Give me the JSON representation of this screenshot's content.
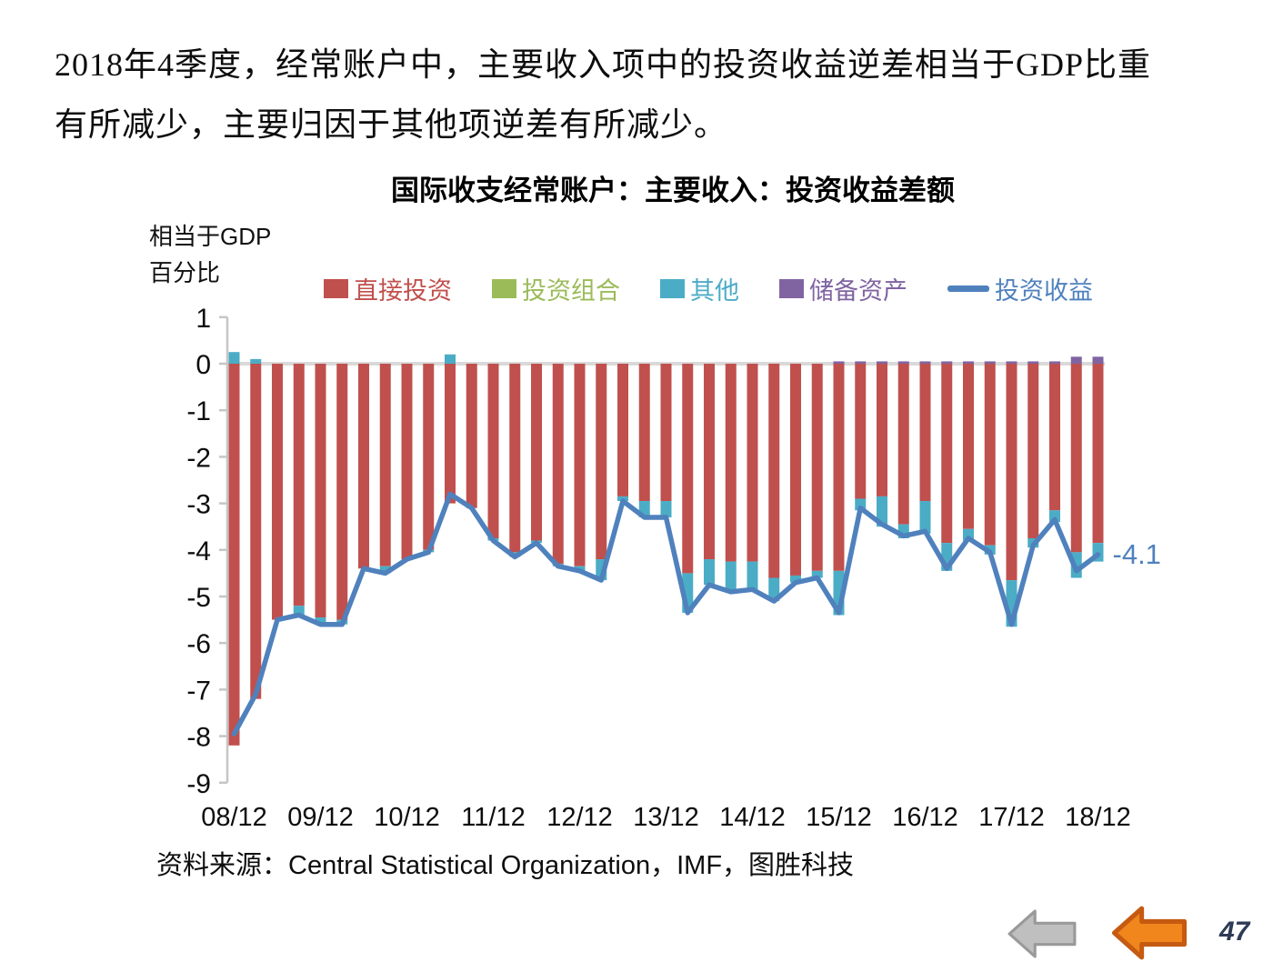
{
  "page": {
    "heading_line1": "2018年4季度，经常账户中，主要收入项中的投资收益逆差相当于GDP比重",
    "heading_line2": "有所减少，主要归因于其他项逆差有所减少。",
    "source_text": "资料来源：Central Statistical Organization，IMF，图胜科技",
    "page_number": "47"
  },
  "chart_data": {
    "type": "bar",
    "subtype": "stacked-bars-with-line-overlay",
    "title": "国际收支经常账户：主要收入：投资收益差额",
    "ylabel_line1": "相当于GDP",
    "ylabel_line2": "百分比",
    "ylim": [
      -9,
      1
    ],
    "y_ticks": [
      1,
      0,
      -1,
      -2,
      -3,
      -4,
      -5,
      -6,
      -7,
      -8,
      -9
    ],
    "frequency": "quarterly",
    "n_points": 41,
    "x_tick_labels": [
      "08/12",
      "09/12",
      "10/12",
      "11/12",
      "12/12",
      "13/12",
      "14/12",
      "15/12",
      "16/12",
      "17/12",
      "18/12"
    ],
    "x_tick_interval": 4,
    "grid": "zero-line-only",
    "legend_position": "top",
    "axis_color": "#C6C6C6",
    "zero_line_color": "#D9D9D9",
    "annotation": {
      "text": "-4.1",
      "series": "投资收益",
      "point_index": 40,
      "color": "#4F81BD"
    },
    "series": [
      {
        "name": "直接投资",
        "type": "bar",
        "color": "#C0504D",
        "values": [
          -8.2,
          -7.2,
          -5.5,
          -5.2,
          -5.45,
          -5.5,
          -4.4,
          -4.35,
          -4.2,
          -4.0,
          -3.0,
          -3.1,
          -3.75,
          -4.05,
          -3.8,
          -4.3,
          -4.35,
          -4.2,
          -2.85,
          -2.95,
          -2.95,
          -4.5,
          -4.2,
          -4.25,
          -4.25,
          -4.6,
          -4.55,
          -4.45,
          -4.45,
          -2.9,
          -2.85,
          -3.45,
          -2.95,
          -3.85,
          -3.55,
          -3.9,
          -4.65,
          -3.75,
          -3.15,
          -4.05,
          -3.85
        ]
      },
      {
        "name": "投资组合",
        "type": "bar",
        "color": "#9BBB59",
        "values": [
          0,
          0,
          0,
          0,
          0,
          0,
          0,
          0,
          0,
          0,
          0,
          0,
          0,
          0,
          0,
          0,
          0,
          0,
          0,
          0,
          0,
          0,
          0,
          0,
          0,
          0,
          0,
          0,
          0,
          0,
          0,
          0,
          0,
          0,
          0,
          0,
          0,
          0,
          0,
          0,
          0
        ]
      },
      {
        "name": "其他",
        "type": "bar",
        "color": "#4BACC6",
        "values": [
          0.25,
          0.1,
          0,
          -0.2,
          -0.15,
          -0.1,
          0,
          -0.15,
          0,
          -0.05,
          0.2,
          0,
          -0.05,
          -0.1,
          -0.05,
          -0.05,
          -0.1,
          -0.45,
          -0.1,
          -0.35,
          -0.35,
          -0.85,
          -0.55,
          -0.65,
          -0.6,
          -0.5,
          -0.15,
          -0.15,
          -0.95,
          -0.25,
          -0.65,
          -0.3,
          -0.7,
          -0.6,
          -0.25,
          -0.2,
          -1.0,
          -0.2,
          -0.25,
          -0.55,
          -0.4
        ]
      },
      {
        "name": "储备资产",
        "type": "bar",
        "color": "#8064A2",
        "values": [
          0,
          0,
          0,
          0,
          0,
          0,
          0,
          0,
          0,
          0,
          0,
          0,
          0,
          0,
          0,
          0,
          0,
          0,
          0,
          0,
          0,
          0,
          0,
          0,
          0,
          0,
          0,
          0,
          0.05,
          0.05,
          0.05,
          0.05,
          0.05,
          0.05,
          0.05,
          0.05,
          0.05,
          0.05,
          0.05,
          0.15,
          0.15
        ]
      },
      {
        "name": "投资收益",
        "type": "line",
        "color": "#4F81BD",
        "values": [
          -7.95,
          -7.1,
          -5.5,
          -5.4,
          -5.6,
          -5.6,
          -4.4,
          -4.5,
          -4.2,
          -4.05,
          -2.8,
          -3.1,
          -3.8,
          -4.15,
          -3.85,
          -4.35,
          -4.45,
          -4.65,
          -2.95,
          -3.3,
          -3.3,
          -5.35,
          -4.75,
          -4.9,
          -4.85,
          -5.1,
          -4.7,
          -4.6,
          -5.35,
          -3.1,
          -3.45,
          -3.7,
          -3.6,
          -4.4,
          -3.75,
          -4.05,
          -5.6,
          -3.9,
          -3.35,
          -4.45,
          -4.1
        ]
      }
    ]
  },
  "footer": {
    "back_arrow": "gray-left-arrow",
    "prev_arrow": "orange-left-arrow"
  }
}
